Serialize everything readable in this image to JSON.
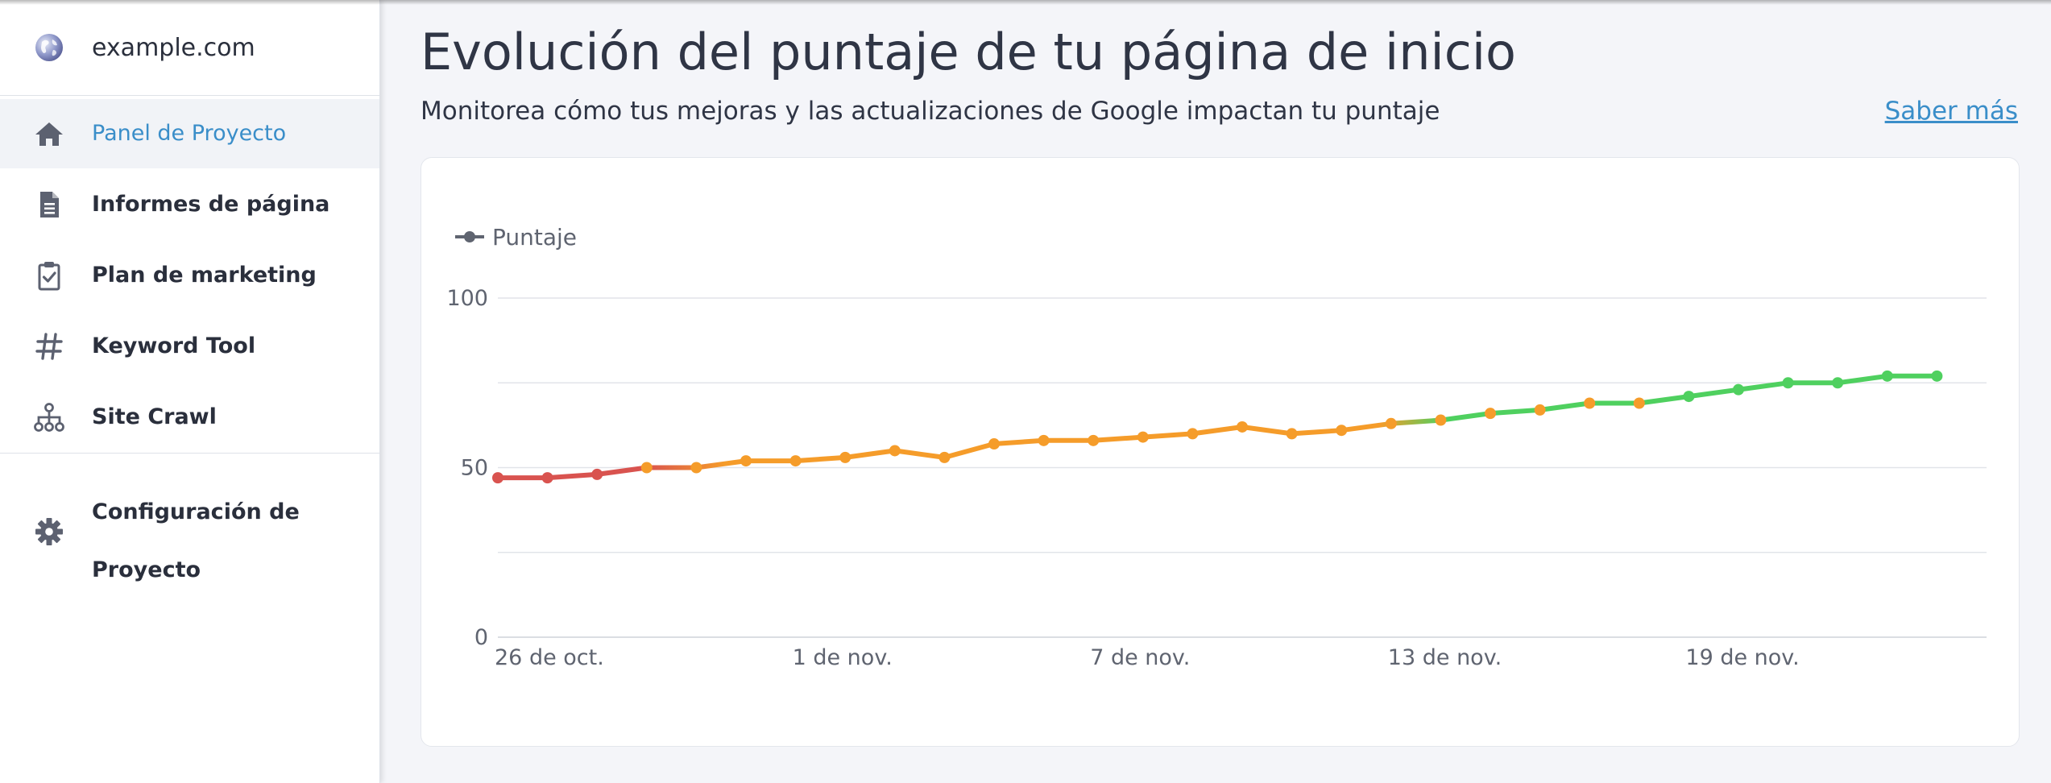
{
  "sidebar": {
    "site_name": "example.com",
    "items": [
      {
        "label": "Panel de Proyecto",
        "icon": "home-icon",
        "active": true
      },
      {
        "label": "Informes de página",
        "icon": "document-icon",
        "active": false
      },
      {
        "label": "Plan de marketing",
        "icon": "clipboard-check-icon",
        "active": false
      },
      {
        "label": "Keyword Tool",
        "icon": "hashtag-icon",
        "active": false
      },
      {
        "label": "Site Crawl",
        "icon": "sitemap-icon",
        "active": false
      }
    ],
    "settings": {
      "label": "Configuración de Proyecto",
      "icon": "gear-icon"
    }
  },
  "main": {
    "title": "Evolución del puntaje de tu página de inicio",
    "subtitle": "Monitorea cómo tus mejoras y las actualizaciones de Google impactan tu puntaje",
    "learn_more": "Saber más"
  },
  "colors": {
    "accent": "#3a8ec9",
    "score_low": "#d9534f",
    "score_mid": "#f59c2a",
    "score_high": "#4fd05f"
  },
  "chart_data": {
    "type": "line",
    "title": "",
    "xlabel": "",
    "ylabel": "",
    "legend": [
      "Puntaje"
    ],
    "legend_position": "top-left",
    "ylim": [
      0,
      100
    ],
    "y_ticks": [
      0,
      50,
      100
    ],
    "x_tick_labels": [
      "26 de oct.",
      "1 de nov.",
      "7 de nov.",
      "13 de nov.",
      "19 de nov."
    ],
    "grid": true,
    "x_start": "2023-10-26",
    "x_end": "2023-11-25",
    "series": [
      {
        "name": "Puntaje",
        "x": [
          "2023-10-26",
          "2023-10-27",
          "2023-10-28",
          "2023-10-29",
          "2023-10-30",
          "2023-10-31",
          "2023-11-01",
          "2023-11-02",
          "2023-11-03",
          "2023-11-04",
          "2023-11-05",
          "2023-11-06",
          "2023-11-07",
          "2023-11-08",
          "2023-11-09",
          "2023-11-10",
          "2023-11-11",
          "2023-11-12",
          "2023-11-13",
          "2023-11-14",
          "2023-11-15",
          "2023-11-16",
          "2023-11-17",
          "2023-11-18",
          "2023-11-19",
          "2023-11-20",
          "2023-11-21",
          "2023-11-22",
          "2023-11-23",
          "2023-11-24",
          "2023-11-25"
        ],
        "values": [
          47,
          47,
          48,
          50,
          50,
          52,
          52,
          53,
          55,
          53,
          57,
          58,
          58,
          59,
          60,
          62,
          60,
          61,
          63,
          64,
          66,
          67,
          69,
          69,
          71,
          73,
          75,
          75,
          77,
          77,
          null
        ]
      }
    ]
  }
}
